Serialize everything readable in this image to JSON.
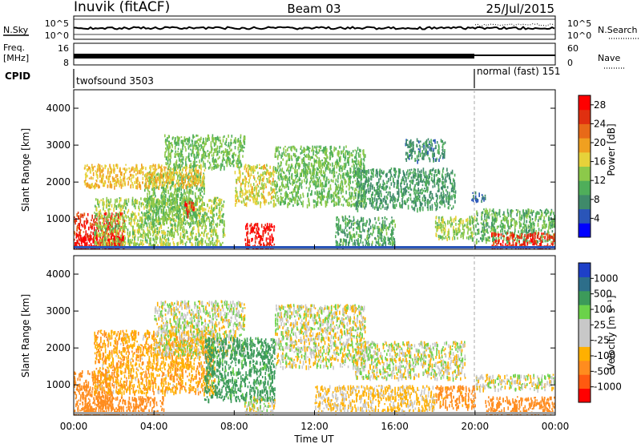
{
  "header": {
    "station": "Inuvik (fitACF)",
    "beam": "Beam 03",
    "date": "25/Jul/2015"
  },
  "noise_panel": {
    "left_label": "N.Sky",
    "left_ticks": [
      "10^5",
      "10^0"
    ],
    "right_ticks": [
      "10^5",
      "10^0"
    ],
    "right_label": "N.Search"
  },
  "freq_panel": {
    "left_label_line1": "Freq.",
    "left_label_line2": "[MHz]",
    "left_ticks": [
      "16",
      "8"
    ],
    "right_ticks": [
      "60",
      "0"
    ],
    "right_label": "Nave"
  },
  "cpid": {
    "label": "CPID",
    "segments": [
      {
        "name": "twofsound 3503",
        "start_hour": 0,
        "end_hour": 20
      },
      {
        "name": "normal (fast) 151",
        "start_hour": 20,
        "end_hour": 24
      }
    ]
  },
  "colors": {
    "power_scale": [
      "#0000ff",
      "#2a55b8",
      "#3f8a6a",
      "#4fae5a",
      "#8cc94a",
      "#e6d23a",
      "#f0a020",
      "#e86a18",
      "#e03010",
      "#ff0000"
    ],
    "velocity_scale": [
      "#ff0000",
      "#ff5a10",
      "#ff8c1e",
      "#ffb000",
      "#c8c8c8",
      "#c8c8c8",
      "#6bd24a",
      "#3c9a5a",
      "#2d6e8a",
      "#1e40c8"
    ],
    "velocity_ground": "#a0a0a0"
  },
  "chart_data": [
    {
      "type": "heatmap",
      "name": "power",
      "xlabel": "",
      "ylabel": "Slant Range [km]",
      "xlim": [
        0,
        24
      ],
      "ylim": [
        180,
        4500
      ],
      "x_ticks": [
        "00:00",
        "04:00",
        "08:00",
        "12:00",
        "16:00",
        "20:00",
        "00:00"
      ],
      "y_ticks": [
        1000,
        2000,
        3000,
        4000
      ],
      "colorbar": {
        "label": "Power [dB]",
        "ticks": [
          4,
          8,
          12,
          16,
          20,
          24,
          28
        ],
        "range": [
          0,
          30
        ]
      },
      "regions": [
        {
          "t": [
            0.0,
            2.5
          ],
          "r": [
            200,
            1200
          ],
          "v": 26
        },
        {
          "t": [
            0.0,
            2.5
          ],
          "r": [
            200,
            600
          ],
          "v": 28
        },
        {
          "t": [
            1.0,
            7.5
          ],
          "r": [
            300,
            1600
          ],
          "v": 14
        },
        {
          "t": [
            3.5,
            6.5
          ],
          "r": [
            900,
            2300
          ],
          "v": 12
        },
        {
          "t": [
            5.5,
            6.0
          ],
          "r": [
            1100,
            1500
          ],
          "v": 26
        },
        {
          "t": [
            0.5,
            6.5
          ],
          "r": [
            1900,
            2500
          ],
          "v": 18
        },
        {
          "t": [
            4.5,
            8.5
          ],
          "r": [
            2400,
            3300
          ],
          "v": 12
        },
        {
          "t": [
            8.0,
            10.0
          ],
          "r": [
            1400,
            2500
          ],
          "v": 16
        },
        {
          "t": [
            8.5,
            10.0
          ],
          "r": [
            200,
            900
          ],
          "v": 28
        },
        {
          "t": [
            10.0,
            14.5
          ],
          "r": [
            1400,
            3000
          ],
          "v": 12
        },
        {
          "t": [
            13.0,
            16.0
          ],
          "r": [
            300,
            1100
          ],
          "v": 10
        },
        {
          "t": [
            14.0,
            19.0
          ],
          "r": [
            1300,
            2400
          ],
          "v": 9
        },
        {
          "t": [
            16.5,
            18.5
          ],
          "r": [
            2600,
            3200
          ],
          "v": 8
        },
        {
          "t": [
            18.0,
            20.0
          ],
          "r": [
            500,
            1100
          ],
          "v": 14
        },
        {
          "t": [
            19.8,
            20.5
          ],
          "r": [
            1500,
            1750
          ],
          "v": 6
        },
        {
          "t": [
            20.0,
            24.0
          ],
          "r": [
            400,
            1300
          ],
          "v": 11
        },
        {
          "t": [
            20.8,
            24.0
          ],
          "r": [
            200,
            650
          ],
          "v": 26
        }
      ]
    },
    {
      "type": "heatmap",
      "name": "velocity",
      "xlabel": "Time UT",
      "ylabel": "Slant Range [km]",
      "xlim": [
        0,
        24
      ],
      "ylim": [
        180,
        4500
      ],
      "x_ticks": [
        "00:00",
        "04:00",
        "08:00",
        "12:00",
        "16:00",
        "20:00",
        "00:00"
      ],
      "y_ticks": [
        1000,
        2000,
        3000,
        4000
      ],
      "colorbar": {
        "label": "Velocity [m s⁻¹]",
        "ticks": [
          1000,
          500,
          100,
          25,
          -25,
          -100,
          -500,
          -1000
        ]
      },
      "regions": [
        {
          "t": [
            0.0,
            2.0
          ],
          "r": [
            200,
            1400
          ],
          "v": -400
        },
        {
          "t": [
            0.5,
            4.5
          ],
          "r": [
            200,
            700
          ],
          "v": -300
        },
        {
          "t": [
            1.0,
            7.0
          ],
          "r": [
            800,
            2500
          ],
          "v": -80
        },
        {
          "t": [
            4.0,
            8.5
          ],
          "r": [
            1800,
            3300
          ],
          "v": 0
        },
        {
          "t": [
            6.5,
            10.0
          ],
          "r": [
            600,
            2300
          ],
          "v": 150
        },
        {
          "t": [
            8.5,
            10.0
          ],
          "r": [
            200,
            700
          ],
          "v": 0
        },
        {
          "t": [
            10.0,
            14.5
          ],
          "r": [
            1500,
            3200
          ],
          "v": 0
        },
        {
          "t": [
            12.0,
            18.0
          ],
          "r": [
            300,
            1000
          ],
          "v": -40
        },
        {
          "t": [
            14.0,
            19.5
          ],
          "r": [
            1200,
            2200
          ],
          "v": 0
        },
        {
          "t": [
            18.0,
            20.0
          ],
          "r": [
            400,
            1000
          ],
          "v": -150
        },
        {
          "t": [
            20.0,
            24.0
          ],
          "r": [
            900,
            1300
          ],
          "v": 0
        },
        {
          "t": [
            20.5,
            24.0
          ],
          "r": [
            200,
            700
          ],
          "v": -300
        }
      ]
    }
  ]
}
